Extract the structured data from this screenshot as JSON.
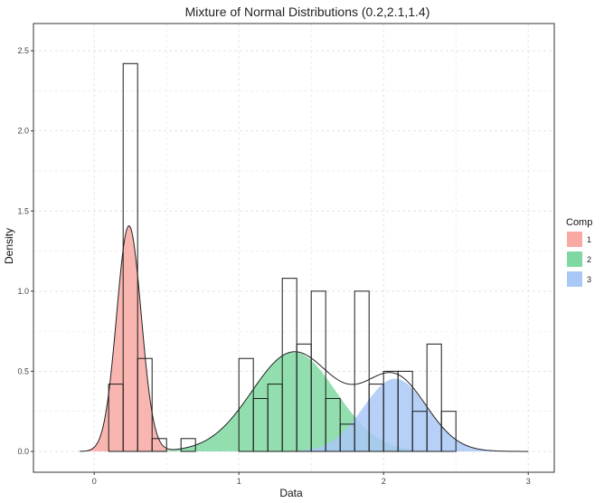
{
  "chart_data": {
    "type": "histogram-with-density",
    "title": "Mixture of Normal Distributions (0.2,2.1,1.4)",
    "xlabel": "Data",
    "ylabel": "Density",
    "xlim": [
      -0.42,
      3.18
    ],
    "ylim": [
      -0.13,
      2.67
    ],
    "x_ticks": [
      0,
      1,
      2,
      3
    ],
    "x_tick_labels": [
      "0",
      "1",
      "2",
      "3"
    ],
    "y_ticks": [
      0.0,
      0.5,
      1.0,
      1.5,
      2.0,
      2.5
    ],
    "y_tick_labels": [
      "0.0",
      "0.5",
      "1.0",
      "1.5",
      "2.0",
      "2.5"
    ],
    "grid": true,
    "legend": {
      "title": "Comp",
      "placement": "right",
      "entries": [
        {
          "label": "1",
          "color": "#F8A9A3"
        },
        {
          "label": "2",
          "color": "#7FD8A1"
        },
        {
          "label": "3",
          "color": "#A9C8F6"
        }
      ]
    },
    "histogram": {
      "bin_width": 0.1,
      "bins": [
        {
          "x0": 0.1,
          "density": 0.42
        },
        {
          "x0": 0.2,
          "density": 2.42
        },
        {
          "x0": 0.3,
          "density": 0.58
        },
        {
          "x0": 0.4,
          "density": 0.08
        },
        {
          "x0": 0.6,
          "density": 0.08
        },
        {
          "x0": 1.0,
          "density": 0.58
        },
        {
          "x0": 1.1,
          "density": 0.33
        },
        {
          "x0": 1.2,
          "density": 0.42
        },
        {
          "x0": 1.3,
          "density": 1.08
        },
        {
          "x0": 1.4,
          "density": 0.67
        },
        {
          "x0": 1.5,
          "density": 1.0
        },
        {
          "x0": 1.6,
          "density": 0.33
        },
        {
          "x0": 1.7,
          "density": 0.17
        },
        {
          "x0": 1.8,
          "density": 1.0
        },
        {
          "x0": 1.9,
          "density": 0.42
        },
        {
          "x0": 2.0,
          "density": 0.5
        },
        {
          "x0": 2.1,
          "density": 0.5
        },
        {
          "x0": 2.2,
          "density": 0.25
        },
        {
          "x0": 2.3,
          "density": 0.67
        },
        {
          "x0": 2.4,
          "density": 0.25
        }
      ]
    },
    "components": [
      {
        "label": "1",
        "weight": 0.3,
        "mean": 0.24,
        "sd": 0.085,
        "color": "#F8A9A3",
        "x_range": [
          -0.1,
          0.6
        ]
      },
      {
        "label": "2",
        "weight": 0.45,
        "mean": 1.38,
        "sd": 0.29,
        "color": "#7FD8A1",
        "x_range": [
          0.2,
          2.6
        ]
      },
      {
        "label": "3",
        "weight": 0.25,
        "mean": 2.08,
        "sd": 0.22,
        "color": "#A9C8F6",
        "x_range": [
          1.2,
          3.0
        ]
      }
    ],
    "mixture_curve": {
      "x_range": [
        -0.1,
        3.0
      ],
      "color": "#222222"
    }
  }
}
